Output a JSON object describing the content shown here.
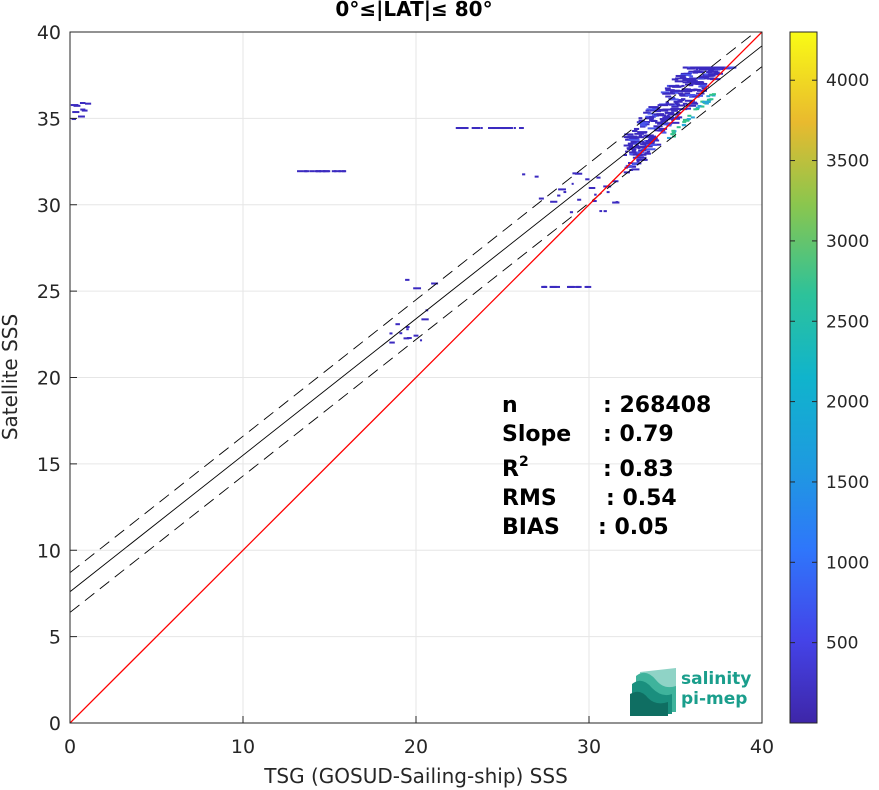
{
  "chart_data": {
    "type": "heatmap",
    "title": "0°≤|LAT|≤ 80°",
    "xlabel": "TSG (GOSUD-Sailing-ship) SSS",
    "ylabel": "Satellite SSS",
    "xlim": [
      0,
      40
    ],
    "ylim": [
      0,
      40
    ],
    "xticks": [
      0,
      10,
      20,
      30,
      40
    ],
    "yticks": [
      0,
      5,
      10,
      15,
      20,
      25,
      30,
      35,
      40
    ],
    "grid": true,
    "colorbar": {
      "range": [
        0,
        4300
      ],
      "ticks": [
        500,
        1000,
        1500,
        2000,
        2500,
        3000,
        3500,
        4000
      ],
      "colormap": "parula"
    },
    "reference_line": {
      "name": "1:1",
      "slope": 1,
      "intercept": 0,
      "color": "#ff0000"
    },
    "fit_line": {
      "slope": 0.79,
      "intercept": 7.6,
      "color": "#000000"
    },
    "fit_bounds": [
      {
        "slope": 0.79,
        "intercept": 8.7
      },
      {
        "slope": 0.79,
        "intercept": 6.4
      }
    ],
    "clusters": [
      {
        "x": [
          32,
          38
        ],
        "y": [
          31,
          38
        ],
        "density": "high"
      },
      {
        "x": [
          13,
          16
        ],
        "y": [
          32,
          32
        ],
        "density": "low"
      },
      {
        "x": [
          22,
          26
        ],
        "y": [
          34.5,
          34.5
        ],
        "density": "low"
      },
      {
        "x": [
          26,
          32
        ],
        "y": [
          29.5,
          32
        ],
        "density": "low"
      },
      {
        "x": [
          18,
          21
        ],
        "y": [
          22,
          26
        ],
        "density": "low"
      },
      {
        "x": [
          27,
          30
        ],
        "y": [
          25.3,
          25.3
        ],
        "density": "low"
      },
      {
        "x": [
          0,
          1
        ],
        "y": [
          35,
          36
        ],
        "density": "low"
      }
    ],
    "stats": [
      {
        "label": "n",
        "value": ": 268408"
      },
      {
        "label": "Slope",
        "value": ": 0.79"
      },
      {
        "label": "R",
        "sup": "2",
        "value": ": 0.83"
      },
      {
        "label": "RMS",
        "value": ": 0.54"
      },
      {
        "label": "BIAS",
        "value": ": 0.05"
      }
    ]
  },
  "logo": {
    "line1": "salinity",
    "line2": "pi-mep"
  }
}
